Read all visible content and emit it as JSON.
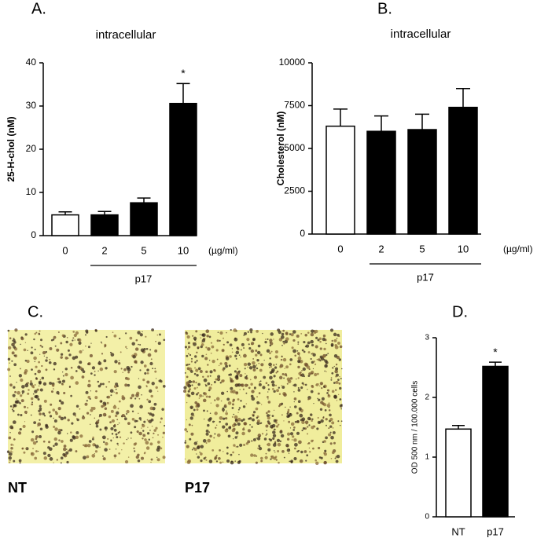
{
  "chart_data": [
    {
      "type": "bar",
      "panel": "A.",
      "title": "intracellular",
      "y_label": "25-H-chol (nM)",
      "categories": [
        "0",
        "2",
        "5",
        "10"
      ],
      "x_unit": "(µg/ml)",
      "group_label": "p17",
      "values": [
        4.8,
        4.8,
        7.6,
        30.6
      ],
      "errors": [
        0.7,
        0.8,
        1.1,
        4.6
      ],
      "colors": [
        "#ffffff",
        "#000000",
        "#000000",
        "#000000"
      ],
      "annotations": [
        null,
        null,
        null,
        "*"
      ],
      "ylim": [
        0,
        40
      ],
      "yticks": [
        0,
        10,
        20,
        30,
        40
      ]
    },
    {
      "type": "bar",
      "panel": "B.",
      "title": "intracellular",
      "y_label": "Cholesterol (nM)",
      "categories": [
        "0",
        "2",
        "5",
        "10"
      ],
      "x_unit": "(µg/ml)",
      "group_label": "p17",
      "values": [
        6300,
        6000,
        6100,
        7400
      ],
      "errors": [
        1000,
        900,
        900,
        1100
      ],
      "colors": [
        "#ffffff",
        "#000000",
        "#000000",
        "#000000"
      ],
      "ylim": [
        0,
        10000
      ],
      "yticks": [
        0,
        2500,
        5000,
        7500,
        10000
      ]
    },
    {
      "type": "bar",
      "panel": "D.",
      "y_label": "OD 500 nm / 100.000 cells",
      "categories": [
        "NT",
        "p17"
      ],
      "values": [
        1.47,
        2.52
      ],
      "errors": [
        0.06,
        0.07
      ],
      "colors": [
        "#ffffff",
        "#000000"
      ],
      "annotations": [
        null,
        "*"
      ],
      "ylim": [
        0,
        3
      ],
      "yticks": [
        0,
        1,
        2,
        3
      ]
    }
  ],
  "image_panel": {
    "panel": "C.",
    "labels": [
      "NT",
      "P17"
    ]
  }
}
